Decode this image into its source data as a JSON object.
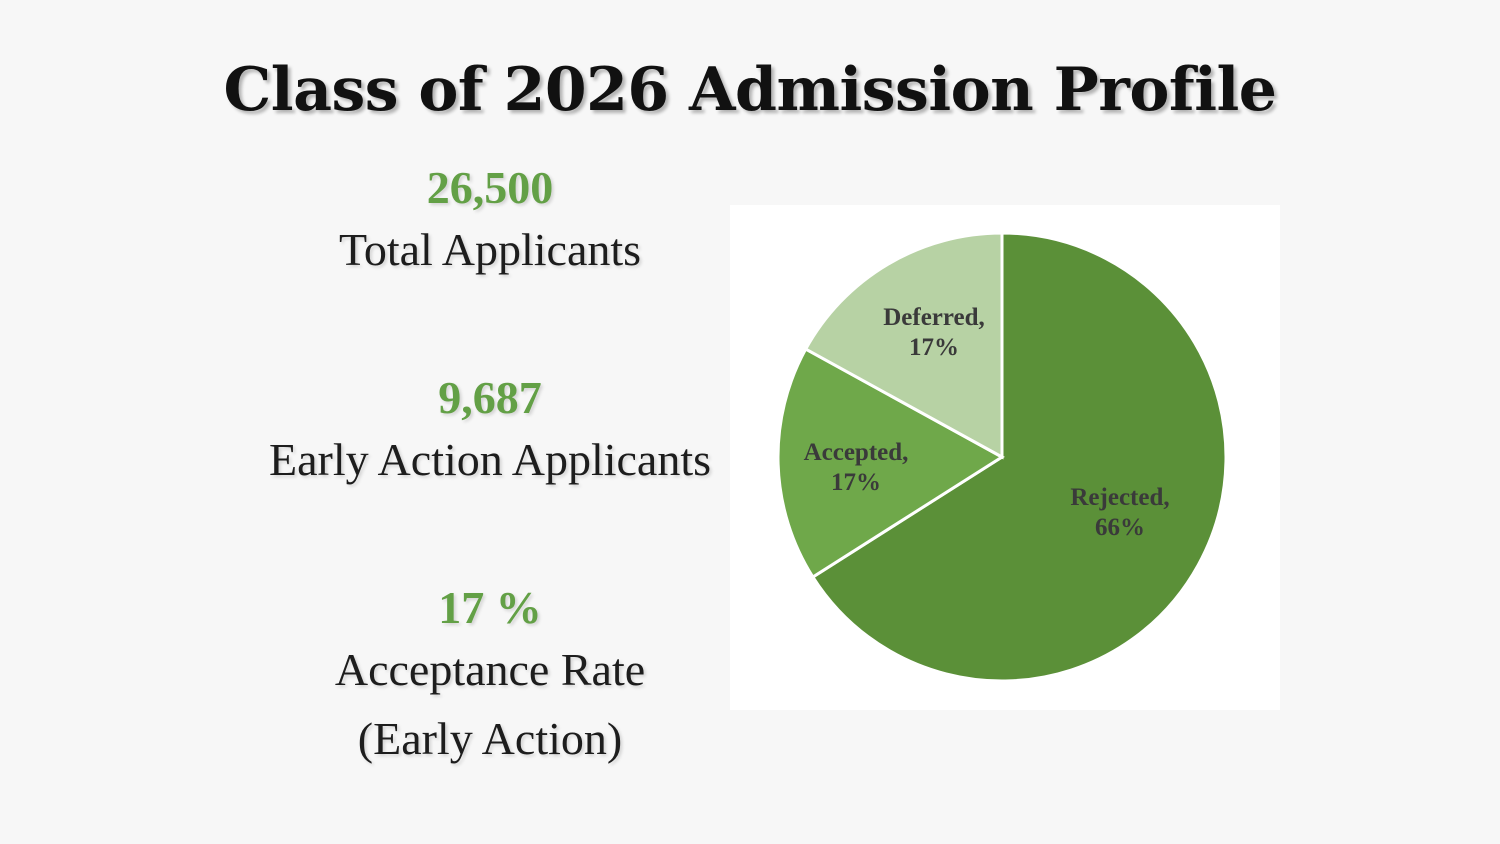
{
  "title": "Class of 2026 Admission Profile",
  "stats": [
    {
      "value": "26,500",
      "label": "Total Applicants"
    },
    {
      "value": "9,687",
      "label": "Early Action Applicants"
    },
    {
      "value": "17 %",
      "label": "Acceptance Rate",
      "sublabel": "(Early Action)"
    }
  ],
  "colors": {
    "accent_green": "#63a046",
    "rejected": "#5b9038",
    "accepted": "#6fa84a",
    "deferred": "#b7d2a4"
  },
  "chart_data": {
    "type": "pie",
    "title": "",
    "slices": [
      {
        "name": "Rejected",
        "value": 66,
        "label_line1": "Rejected,",
        "label_line2": "66%",
        "color": "#5b9038"
      },
      {
        "name": "Accepted",
        "value": 17,
        "label_line1": "Accepted,",
        "label_line2": "17%",
        "color": "#6fa84a"
      },
      {
        "name": "Deferred",
        "value": 17,
        "label_line1": "Deferred,",
        "label_line2": "17%",
        "color": "#b7d2a4"
      }
    ],
    "start_angle": "12 o'clock",
    "direction": "clockwise"
  }
}
